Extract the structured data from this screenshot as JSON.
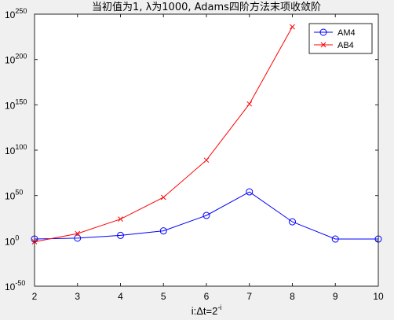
{
  "chart_data": {
    "type": "line",
    "title": "当初值为1, λ为1000, Adams四阶方法末项收敛阶",
    "xlabel_prefix": "i:Δt=2",
    "xlabel_sup": "-i",
    "ylabel": "",
    "y_scale": "log",
    "x": [
      2,
      3,
      4,
      5,
      6,
      7,
      8,
      9,
      10
    ],
    "xlim": [
      2,
      10
    ],
    "ylim_exponent": [
      -50,
      250
    ],
    "x_ticks": [
      "2",
      "3",
      "4",
      "5",
      "6",
      "7",
      "8",
      "9",
      "10"
    ],
    "y_ticks": [
      {
        "exp": 250,
        "label": "250"
      },
      {
        "exp": 200,
        "label": "200"
      },
      {
        "exp": 150,
        "label": "150"
      },
      {
        "exp": 100,
        "label": "100"
      },
      {
        "exp": 50,
        "label": "50"
      },
      {
        "exp": 0,
        "label": "0"
      },
      {
        "exp": -50,
        "label": "-50"
      }
    ],
    "y_tick_base": "10",
    "grid": false,
    "legend_position": "top-right",
    "series": [
      {
        "name": "AM4",
        "color": "#0000ff",
        "marker": "circle",
        "x": [
          2,
          3,
          4,
          5,
          6,
          7,
          8,
          9,
          10
        ],
        "log10_y": [
          2,
          3,
          6,
          11,
          28,
          54,
          21,
          2,
          2
        ]
      },
      {
        "name": "AB4",
        "color": "#ff0000",
        "marker": "x",
        "x": [
          2,
          3,
          4,
          5,
          6,
          7,
          8
        ],
        "log10_y": [
          -1,
          8,
          24,
          48,
          89,
          151,
          236
        ]
      }
    ]
  }
}
